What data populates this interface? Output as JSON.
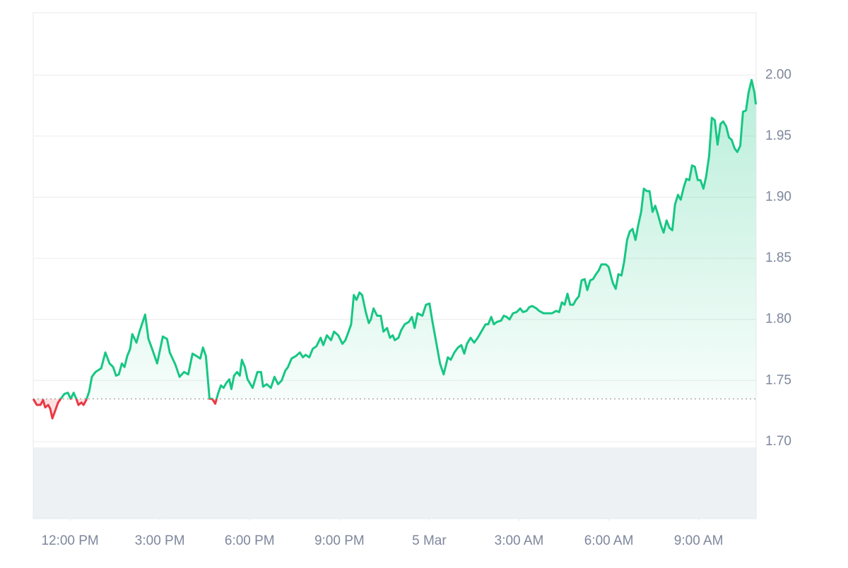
{
  "chart_data": {
    "type": "line",
    "x": [
      10.77,
      10.89,
      11.01,
      11.1,
      11.17,
      11.27,
      11.34,
      11.41,
      11.5,
      11.6,
      11.69,
      11.81,
      11.93,
      12.02,
      12.12,
      12.21,
      12.28,
      12.38,
      12.45,
      12.54,
      12.64,
      12.73,
      12.85,
      13.04,
      13.18,
      13.32,
      13.44,
      13.54,
      13.63,
      13.73,
      13.82,
      13.91,
      14.01,
      14.08,
      14.22,
      14.32,
      14.51,
      14.62,
      14.74,
      14.91,
      15.1,
      15.24,
      15.33,
      15.52,
      15.66,
      15.81,
      15.95,
      16.09,
      16.23,
      16.35,
      16.44,
      16.54,
      16.66,
      16.75,
      16.85,
      16.94,
      17.04,
      17.13,
      17.22,
      17.32,
      17.39,
      17.48,
      17.58,
      17.67,
      17.74,
      17.84,
      17.93,
      18.1,
      18.26,
      18.38,
      18.45,
      18.57,
      18.71,
      18.83,
      18.95,
      19.07,
      19.19,
      19.28,
      19.4,
      19.54,
      19.68,
      19.78,
      19.87,
      19.99,
      20.11,
      20.23,
      20.37,
      20.46,
      20.58,
      20.72,
      20.82,
      20.96,
      21.1,
      21.2,
      21.29,
      21.39,
      21.48,
      21.57,
      21.67,
      21.76,
      21.88,
      21.98,
      22.05,
      22.14,
      22.26,
      22.38,
      22.47,
      22.59,
      22.69,
      22.78,
      22.85,
      22.97,
      23.06,
      23.18,
      23.32,
      23.42,
      23.51,
      23.61,
      23.77,
      23.89,
      24.01,
      24.1,
      24.25,
      24.36,
      24.48,
      24.62,
      24.72,
      24.84,
      24.96,
      25.07,
      25.17,
      25.26,
      25.38,
      25.5,
      25.62,
      25.74,
      25.88,
      25.97,
      26.07,
      26.16,
      26.26,
      26.4,
      26.49,
      26.59,
      26.68,
      26.8,
      26.92,
      27.04,
      27.13,
      27.25,
      27.34,
      27.44,
      27.58,
      27.67,
      27.82,
      28.0,
      28.1,
      28.24,
      28.34,
      28.43,
      28.52,
      28.62,
      28.71,
      28.81,
      28.9,
      29.0,
      29.09,
      29.19,
      29.28,
      29.38,
      29.47,
      29.57,
      29.66,
      29.75,
      29.9,
      29.99,
      30.13,
      30.23,
      30.32,
      30.42,
      30.51,
      30.61,
      30.7,
      30.79,
      30.89,
      30.98,
      31.08,
      31.17,
      31.27,
      31.36,
      31.46,
      31.55,
      31.65,
      31.74,
      31.83,
      31.93,
      32.02,
      32.12,
      32.21,
      32.31,
      32.4,
      32.5,
      32.59,
      32.69,
      32.78,
      32.87,
      32.97,
      33.06,
      33.16,
      33.25,
      33.35,
      33.44,
      33.54,
      33.63,
      33.73,
      33.82,
      33.92,
      34.01,
      34.1,
      34.2,
      34.29,
      34.39,
      34.48,
      34.58,
      34.67,
      34.77,
      34.86,
      34.91
    ],
    "values": [
      1.735,
      1.73,
      1.73,
      1.734,
      1.728,
      1.73,
      1.727,
      1.719,
      1.725,
      1.732,
      1.735,
      1.739,
      1.74,
      1.735,
      1.74,
      1.735,
      1.73,
      1.732,
      1.73,
      1.734,
      1.741,
      1.753,
      1.757,
      1.76,
      1.773,
      1.764,
      1.761,
      1.754,
      1.755,
      1.764,
      1.761,
      1.77,
      1.776,
      1.788,
      1.781,
      1.79,
      1.804,
      1.784,
      1.776,
      1.764,
      1.786,
      1.784,
      1.773,
      1.763,
      1.753,
      1.757,
      1.755,
      1.772,
      1.77,
      1.768,
      1.777,
      1.77,
      1.735,
      1.735,
      1.731,
      1.739,
      1.746,
      1.744,
      1.748,
      1.751,
      1.743,
      1.754,
      1.757,
      1.754,
      1.767,
      1.761,
      1.751,
      1.744,
      1.757,
      1.757,
      1.745,
      1.747,
      1.744,
      1.753,
      1.747,
      1.75,
      1.758,
      1.761,
      1.768,
      1.77,
      1.773,
      1.769,
      1.771,
      1.769,
      1.776,
      1.778,
      1.785,
      1.779,
      1.787,
      1.783,
      1.79,
      1.787,
      1.78,
      1.783,
      1.789,
      1.796,
      1.82,
      1.816,
      1.822,
      1.82,
      1.806,
      1.797,
      1.8,
      1.809,
      1.803,
      1.803,
      1.79,
      1.793,
      1.785,
      1.787,
      1.783,
      1.785,
      1.791,
      1.796,
      1.798,
      1.802,
      1.793,
      1.805,
      1.803,
      1.812,
      1.813,
      1.799,
      1.779,
      1.764,
      1.755,
      1.769,
      1.767,
      1.773,
      1.777,
      1.779,
      1.772,
      1.78,
      1.785,
      1.781,
      1.785,
      1.79,
      1.796,
      1.796,
      1.802,
      1.796,
      1.798,
      1.799,
      1.803,
      1.802,
      1.8,
      1.805,
      1.806,
      1.809,
      1.806,
      1.807,
      1.81,
      1.811,
      1.809,
      1.807,
      1.805,
      1.805,
      1.805,
      1.807,
      1.806,
      1.814,
      1.812,
      1.821,
      1.812,
      1.812,
      1.816,
      1.819,
      1.832,
      1.833,
      1.824,
      1.832,
      1.833,
      1.837,
      1.84,
      1.845,
      1.845,
      1.843,
      1.83,
      1.825,
      1.837,
      1.836,
      1.847,
      1.865,
      1.872,
      1.874,
      1.865,
      1.877,
      1.888,
      1.907,
      1.905,
      1.905,
      1.888,
      1.893,
      1.885,
      1.877,
      1.871,
      1.881,
      1.875,
      1.873,
      1.894,
      1.902,
      1.898,
      1.908,
      1.915,
      1.914,
      1.926,
      1.925,
      1.914,
      1.914,
      1.907,
      1.917,
      1.934,
      1.965,
      1.963,
      1.943,
      1.96,
      1.962,
      1.958,
      1.949,
      1.947,
      1.94,
      1.937,
      1.942,
      1.97,
      1.971,
      1.986,
      1.996,
      1.986,
      1.976
    ],
    "reference_value": 1.735,
    "up_color": "#16c784",
    "down_color": "#ea3943",
    "xlim": [
      10.77,
      34.92
    ],
    "xticks": [
      {
        "value": 12,
        "label": "12:00 PM"
      },
      {
        "value": 15,
        "label": "3:00 PM"
      },
      {
        "value": 18,
        "label": "6:00 PM"
      },
      {
        "value": 21,
        "label": "9:00 PM"
      },
      {
        "value": 24,
        "label": "5 Mar"
      },
      {
        "value": 27,
        "label": "3:00 AM"
      },
      {
        "value": 30,
        "label": "6:00 AM"
      },
      {
        "value": 33,
        "label": "9:00 AM"
      }
    ],
    "ylim": [
      1.637,
      2.051
    ],
    "yticks": [
      {
        "value": 1.7,
        "label": "1.70"
      },
      1.75,
      {
        "value": 1.8,
        "label": "1.80"
      },
      1.85,
      {
        "value": 1.9,
        "label": "1.90"
      },
      1.95,
      {
        "value": 2.0,
        "label": "2.00"
      }
    ],
    "grid": true
  }
}
